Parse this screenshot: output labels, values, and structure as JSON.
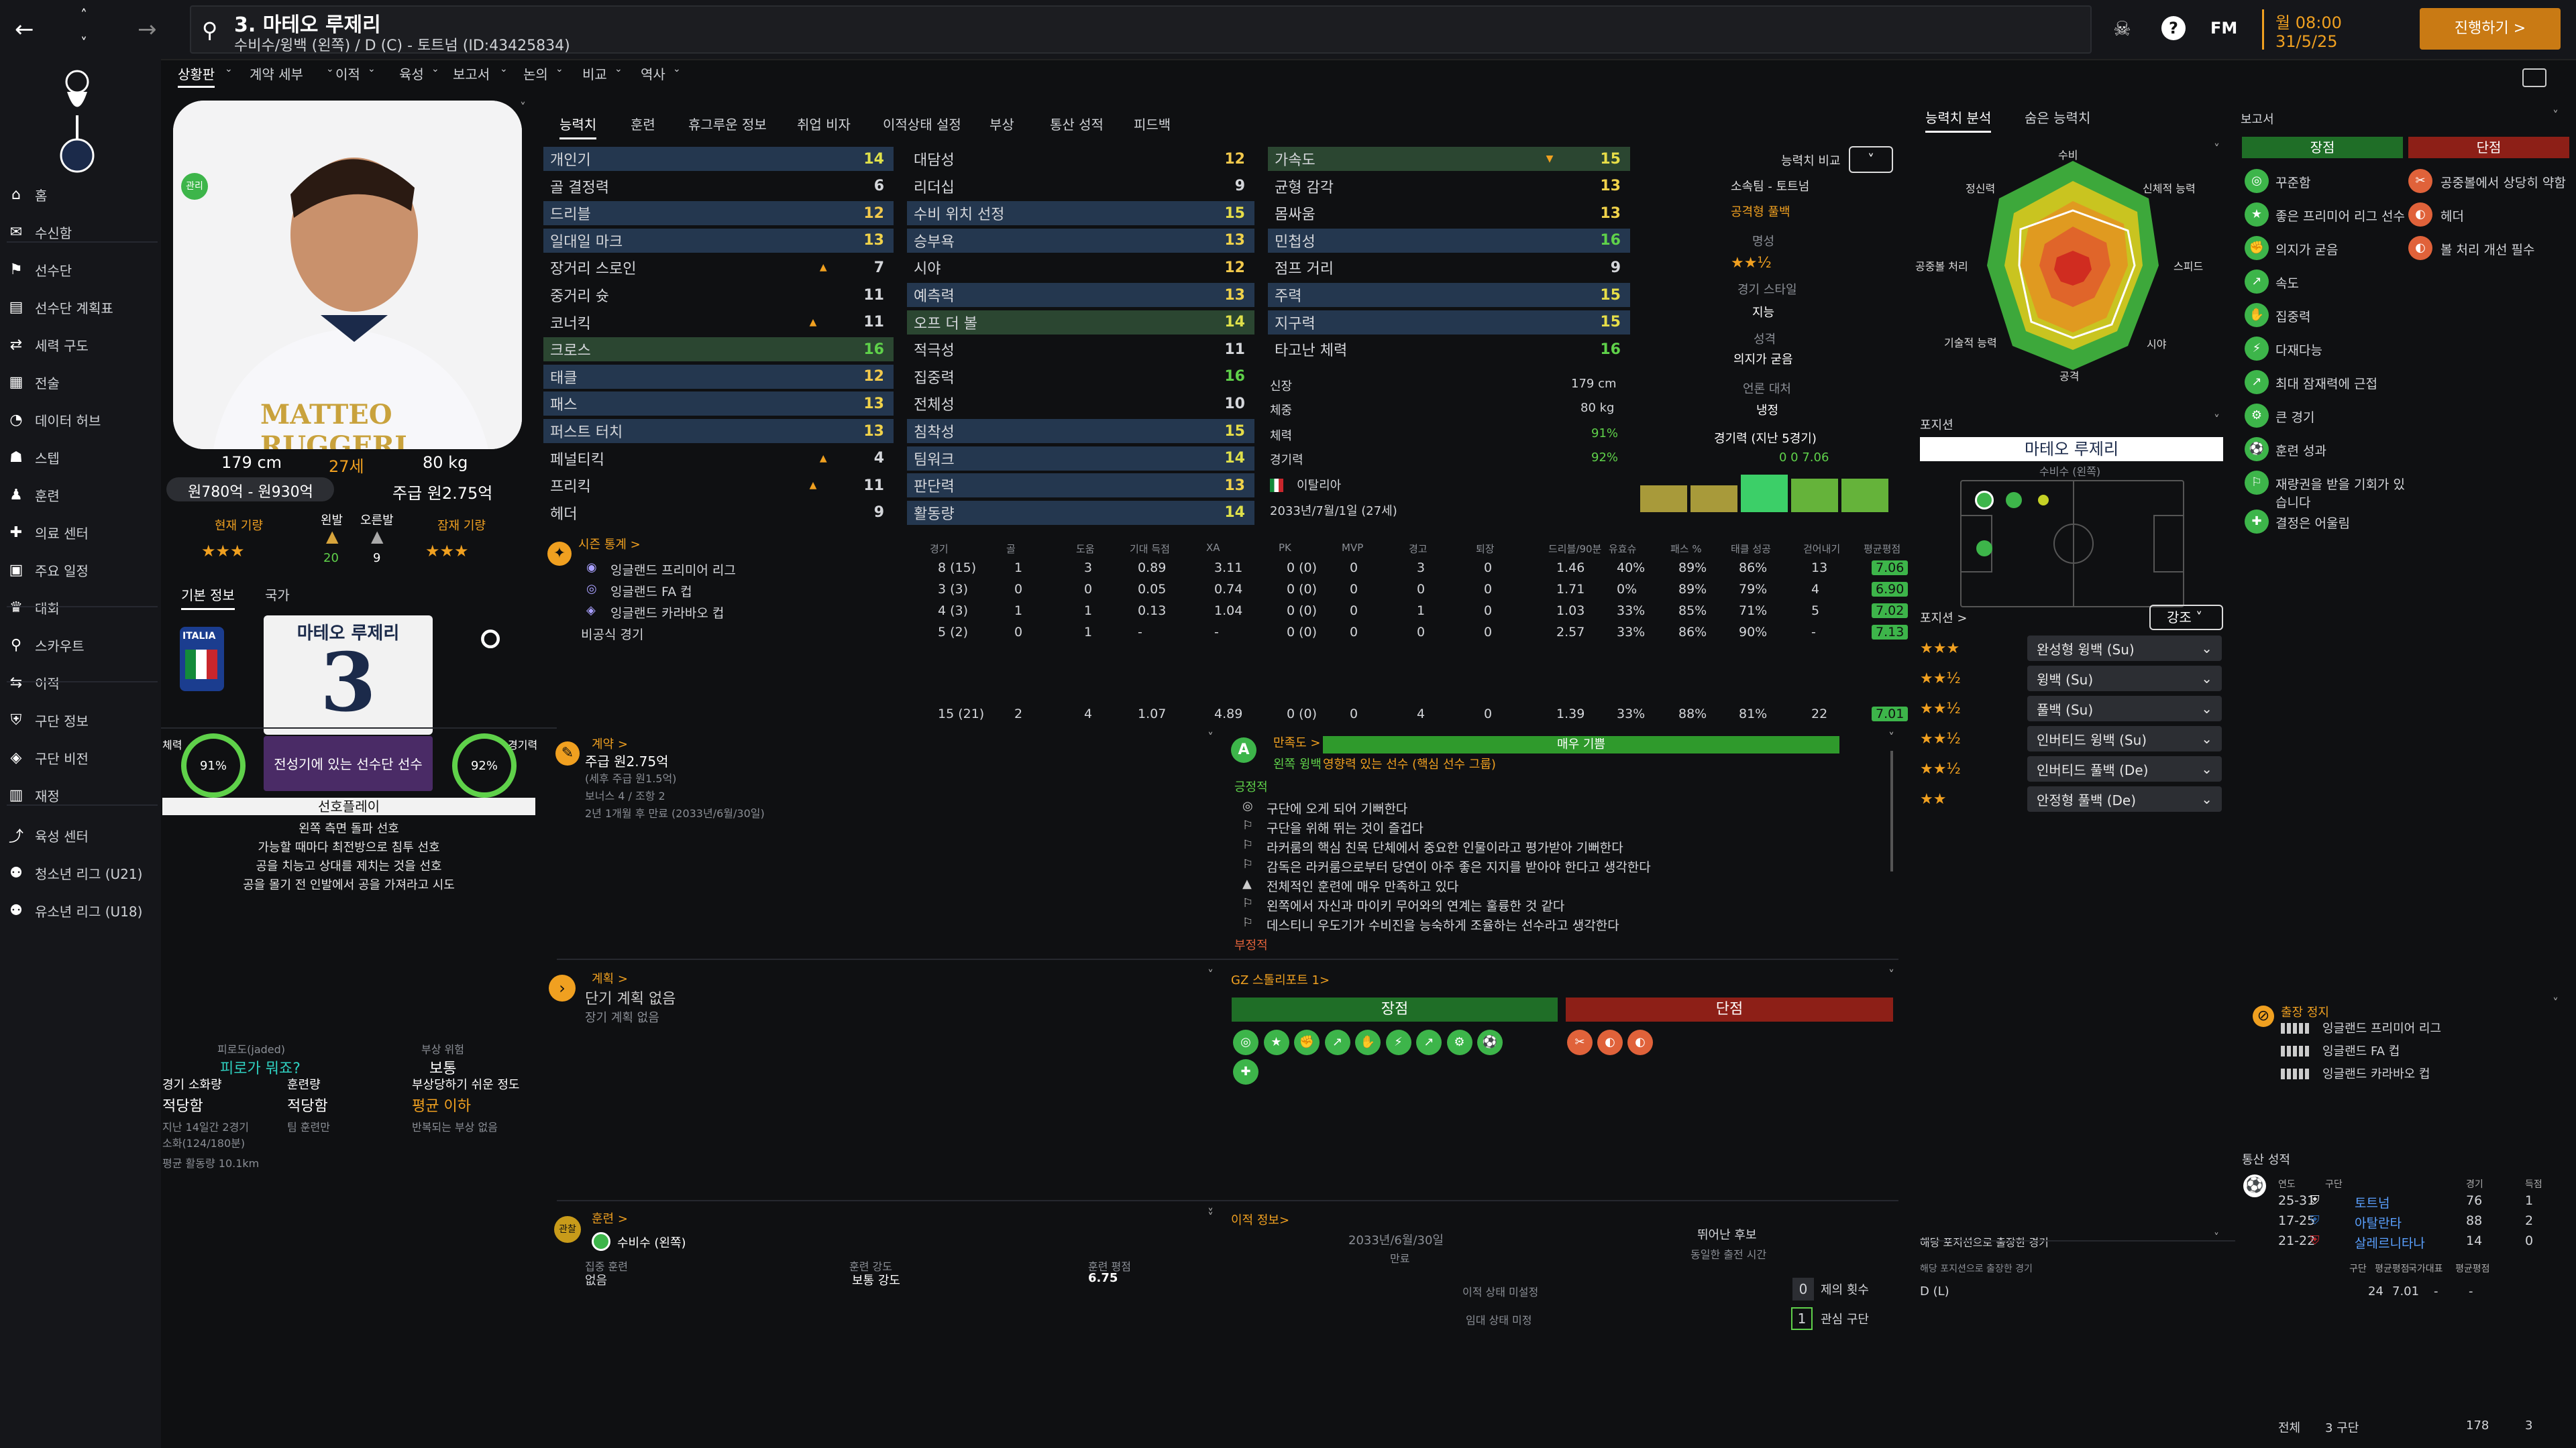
{
  "header": {
    "player_title": "3. 마테오 루제리",
    "player_sub": "수비수/윙백 (왼쪽) / D (C) - 토트넘 (ID:43425834)",
    "fm_label": "FM",
    "date_line1": "월 08:00",
    "date_line2": "31/5/25",
    "continue_label": "진행하기 >"
  },
  "menu": [
    "상황판",
    "계약 세부",
    "이적",
    "육성",
    "보고서",
    "논의",
    "비교",
    "역사"
  ],
  "sidebar": {
    "items": [
      "홈",
      "수신함",
      "선수단",
      "선수단 계획표",
      "세력 구도",
      "전술",
      "데이터 허브",
      "스텝",
      "훈련",
      "의료 센터",
      "주요 일정",
      "대회",
      "스카우트",
      "이적",
      "구단 정보",
      "구단 비전",
      "재정",
      "육성 센터",
      "청소년 리그 (U21)",
      "유소년 리그 (U18)"
    ]
  },
  "profile": {
    "height": "179 cm",
    "age": "27세",
    "weight": "80 kg",
    "value": "원780억 - 원930억",
    "wage": "주급 원2.75억",
    "current_ability_label": "현재 기량",
    "potential_label": "잠재 기량",
    "left_foot_label": "왼발",
    "right_foot_label": "오른발",
    "left_foot": "20",
    "right_foot": "9",
    "current_stars": "★★★",
    "potential_stars": "★★★",
    "tab_basic": "기본 정보",
    "tab_nation": "국가",
    "nation": "ITALIA",
    "shirt_name": "마테오 루제리",
    "shirt_number": "3",
    "squad_status": "전성기에 있는 선수단 선수",
    "cond_label": "체력",
    "fit_label": "경기력",
    "condition": "91%",
    "fitness": "92%",
    "playstyle_label": "선호플레이",
    "playstyles": [
      "왼쪽 측면 돌파 선호",
      "가능할 때마다 최전방으로 침투 선호",
      "공을 치능고 상대를 제치는 것을 선호",
      "공을 몰기 전 인발에서 공을 가져라고 시도"
    ],
    "fatigue_label": "피로도(jaded)",
    "fatigue_value": "피로가 뭐죠?",
    "injury_risk_label": "부상 위험",
    "injury_risk_value": "보통",
    "match_load_label": "경기 소화량",
    "match_load_value": "적당함",
    "training_load_label": "훈련량",
    "training_load_value": "적당함",
    "injury_prone_label": "부상당하기 쉬운 정도",
    "injury_prone_value": "평균 이하",
    "recent_label": "지난 14일간 2경기",
    "recent_mins": "소화(124/180분)",
    "training_team": "팀 훈련만",
    "avg_distance": "평균 활동량 10.1km",
    "injury_susceptibility": "반복되는 부상 없음",
    "card_name_overlay": "MATTEO RUGGERI"
  },
  "attr_tabs": [
    "능력치",
    "훈련",
    "휴그루운 정보",
    "취업 비자",
    "이적상태 설정",
    "부상",
    "통산 성적",
    "피드백"
  ],
  "technical": [
    [
      "개인기",
      "14"
    ],
    [
      "골 결정력",
      "6"
    ],
    [
      "드리블",
      "12"
    ],
    [
      "일대일 마크",
      "13"
    ],
    [
      "장거리 스로인",
      "7"
    ],
    [
      "중거리 슛",
      "11"
    ],
    [
      "코너킥",
      "11"
    ],
    [
      "크로스",
      "16"
    ],
    [
      "태클",
      "12"
    ],
    [
      "패스",
      "13"
    ],
    [
      "퍼스트 터치",
      "13"
    ],
    [
      "페널티킥",
      "4"
    ],
    [
      "프리킥",
      "11"
    ],
    [
      "헤더",
      "9"
    ]
  ],
  "mental": [
    [
      "대담성",
      "12"
    ],
    [
      "리더십",
      "9"
    ],
    [
      "수비 위치 선정",
      "15"
    ],
    [
      "승부욕",
      "13"
    ],
    [
      "시야",
      "12"
    ],
    [
      "예측력",
      "13"
    ],
    [
      "오프 더 볼",
      "14"
    ],
    [
      "적극성",
      "11"
    ],
    [
      "집중력",
      "16"
    ],
    [
      "전체성",
      "10"
    ],
    [
      "침착성",
      "15"
    ],
    [
      "팀워크",
      "14"
    ],
    [
      "판단력",
      "13"
    ],
    [
      "활동량",
      "14"
    ]
  ],
  "physical": [
    [
      "가속도",
      "15"
    ],
    [
      "균형 감각",
      "13"
    ],
    [
      "몸싸움",
      "13"
    ],
    [
      "민첩성",
      "16"
    ],
    [
      "점프 거리",
      "9"
    ],
    [
      "주력",
      "15"
    ],
    [
      "지구력",
      "15"
    ],
    [
      "타고난 체력",
      "16"
    ]
  ],
  "compare": {
    "label": "능력치 비교",
    "club": "소속팀 - 토트넘",
    "role": "공격형 풀백",
    "rep_label": "명성",
    "rep_stars": "★★½",
    "style_label": "경기 스타일",
    "style_value": "지능",
    "personality_label": "성격",
    "personality_value": "의지가 굳음",
    "media_label": "언론 대처",
    "media_value": "냉정",
    "form_label": "경기력 (지난 5경기)",
    "form_stat": "0   0   7.06"
  },
  "bio": {
    "height_label": "신장",
    "height": "179 cm",
    "weight_label": "체중",
    "weight": "80 kg",
    "cond_label": "체력",
    "cond": "91%",
    "fit_label": "경기력",
    "fit": "92%",
    "nationality": "이탈리아",
    "contract": "2033년/7월/1일 (27세)"
  },
  "season": {
    "title": "시즌 통계 >",
    "headers": [
      "경기",
      "골",
      "도움",
      "기대 득점",
      "XA",
      "PK",
      "MVP",
      "경고",
      "퇴장",
      "드리블/90분",
      "유효슈",
      "패스 %",
      "태클 성공",
      "걷어내기",
      "평균평점"
    ],
    "rows": [
      {
        "comp": "잉글랜드 프리미어 리그",
        "vals": [
          "8 (15)",
          "1",
          "3",
          "0.89",
          "3.11",
          "0 (0)",
          "0",
          "3",
          "0",
          "1.46",
          "40%",
          "89%",
          "86%",
          "13",
          "7.06"
        ]
      },
      {
        "comp": "잉글랜드 FA 컵",
        "vals": [
          "3 (3)",
          "0",
          "0",
          "0.05",
          "0.74",
          "0 (0)",
          "0",
          "0",
          "0",
          "1.71",
          "0%",
          "89%",
          "79%",
          "4",
          "6.90"
        ]
      },
      {
        "comp": "잉글랜드 카라바오 컵",
        "vals": [
          "4 (3)",
          "1",
          "1",
          "0.13",
          "1.04",
          "0 (0)",
          "0",
          "1",
          "0",
          "1.03",
          "33%",
          "85%",
          "71%",
          "5",
          "7.02"
        ]
      },
      {
        "comp": "비공식 경기",
        "vals": [
          "5 (2)",
          "0",
          "1",
          "-",
          "-",
          "0 (0)",
          "0",
          "0",
          "0",
          "2.57",
          "33%",
          "86%",
          "90%",
          "-",
          "7.13"
        ]
      }
    ],
    "totals": [
      "15 (21)",
      "2",
      "4",
      "1.07",
      "4.89",
      "0 (0)",
      "0",
      "4",
      "0",
      "1.39",
      "33%",
      "88%",
      "81%",
      "22",
      "7.01"
    ]
  },
  "contract_box": {
    "title": "계약 >",
    "wage": "주급 원2.75억",
    "wage_note": "(세후 주급 원1.5억)",
    "bonus": "보너스 4 / 조항 2",
    "expiry": "2년 1개월 후 만료 (2033년/6월/30일)"
  },
  "happiness": {
    "title": "만족도 >",
    "bar": "매우 기쁨",
    "role": "왼쪽 윙백",
    "role_note": "영향력 있는 선수 (핵심 선수 그룹)",
    "pos_label": "긍정적",
    "items": [
      "구단에 오게 되어 기뻐한다",
      "구단을 위해 뛰는 것이 즐겁다",
      "라커룸의 핵심 친목 단체에서 중요한 인물이라고 평가받아 기뻐한다",
      "감독은 라커룸으로부터 당연이 아주 좋은 지지를 받아야 한다고 생각한다",
      "전체적인 훈련에 매우 만족하고 있다",
      "왼쪽에서 자신과 마이키 무어와의 연계는 훌륭한 것 같다",
      "데스티니 우도기가 수비진을 능숙하게 조율하는 선수라고 생각한다"
    ],
    "neg_label": "부정적"
  },
  "plans": {
    "title": "계획 >",
    "short": "단기 계획 없음",
    "long": "장기 계획 없음"
  },
  "gz": {
    "title": "GZ 스톨리포트 1>",
    "strengths": "장점",
    "weaknesses": "단점"
  },
  "training": {
    "title": "훈련 >",
    "role": "수비수 (왼쪽)",
    "focus_label": "집중 훈련",
    "focus_value": "없음",
    "intensity_label": "훈련 강도",
    "intensity_value": "보통 강도",
    "rating_label": "훈련 평점",
    "rating_value": "6.75"
  },
  "transfer": {
    "title": "이적 정보>",
    "date": "2033년/6월/30일",
    "date_label": "만료",
    "future_label": "뛰어난 후보",
    "future_sub": "동일한 출전 시간",
    "status": "이적 상태 미설정",
    "loan": "임대 상태 미정",
    "offers_count": "0",
    "offers_label": "제의 횟수",
    "interest_count": "1",
    "interest_label": "관심 구단"
  },
  "right": {
    "tab1": "능력치 분석",
    "tab2": "숨은 능력치",
    "radar": [
      "수비",
      "신체적 능력",
      "스피드",
      "시야",
      "공격",
      "기술적 능력",
      "공중볼 처리",
      "정신력"
    ],
    "position_label": "포지션",
    "pos_name": "마테오 루제리",
    "pos_role": "수비수 (왼쪽)",
    "pos_sort_label": "포지션 >",
    "sort_value": "강조",
    "positions": [
      [
        "★★★",
        "완성형 윙백 (Su)"
      ],
      [
        "★★½",
        "윙백 (Su)"
      ],
      [
        "★★½",
        "풀백 (Su)"
      ],
      [
        "★★½",
        "인버티드 윙백 (Su)"
      ],
      [
        "★★½",
        "인버티드 풀백 (De)"
      ],
      [
        "★★",
        "안정형 풀백 (De)"
      ]
    ],
    "apps_title": "해당 포지션으로 출장한 경기",
    "apps_sub": "해당 포지션으로 출장한 경기",
    "apps_headers": [
      "구단",
      "평균평점",
      "국가대표",
      "평균평점"
    ],
    "apps_row": [
      "D (L)",
      "24",
      "7.01",
      "-",
      "-"
    ]
  },
  "report": {
    "title": "보고서",
    "strengths": "장점",
    "weaknesses": "단점",
    "pros": [
      "꾸준함",
      "좋은 프리미어 리그 선수",
      "의지가 굳음",
      "속도",
      "집중력",
      "다재다능",
      "최대 잠재력에 근접",
      "큰 경기",
      "훈련 성과",
      "재량권을 받을 기회가 있습니다",
      "결정은 어울림"
    ],
    "cons": [
      "공중볼에서 상당히 약함",
      "헤더",
      "볼 처리 개선 필수"
    ],
    "suspension_title": "출장 정지",
    "suspensions": [
      "잉글랜드 프리미어 리그",
      "잉글랜드 FA 컵",
      "잉글랜드 카라바오 컵"
    ],
    "career_title": "통산 성적",
    "career_headers": [
      "연도",
      "구단",
      "경기",
      "득점"
    ],
    "career_rows": [
      [
        "25-31",
        "토트넘",
        "76",
        "1"
      ],
      [
        "17-25",
        "아탈란타",
        "88",
        "2"
      ],
      [
        "21-22",
        "살레르니타나",
        "14",
        "0"
      ]
    ],
    "total_label": "전체",
    "total_clubs": "3 구단",
    "total_apps": "178",
    "total_goals": "3"
  },
  "colors": {
    "accent": "#f0a020",
    "green": "#5fd14a",
    "red": "#b1261c",
    "highlight": "#24374f"
  }
}
